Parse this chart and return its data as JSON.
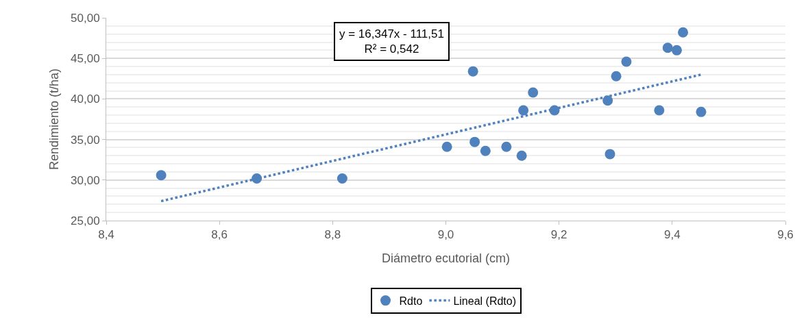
{
  "chart_data": {
    "type": "scatter",
    "xlabel": "Diámetro ecutorial (cm)",
    "ylabel": "Rendimiento (t/ha)",
    "annotations": [
      "y = 16,347x - 111,51\nR² = 0,542"
    ],
    "xlim": [
      8.4,
      9.6
    ],
    "xticks": [
      {
        "value": 8.4,
        "label": "8,4"
      },
      {
        "value": 8.6,
        "label": "8,6"
      },
      {
        "value": 8.8,
        "label": "8,8"
      },
      {
        "value": 9.0,
        "label": "9,0"
      },
      {
        "value": 9.2,
        "label": "9,2"
      },
      {
        "value": 9.4,
        "label": "9,4"
      },
      {
        "value": 9.6,
        "label": "9,6"
      }
    ],
    "ylim": [
      25,
      50
    ],
    "yticks": [
      {
        "value": 25,
        "label": "25,00"
      },
      {
        "value": 30,
        "label": "30,00"
      },
      {
        "value": 35,
        "label": "35,00"
      },
      {
        "value": 40,
        "label": "40,00"
      },
      {
        "value": 45,
        "label": "45,00"
      },
      {
        "value": 50,
        "label": "50,00"
      }
    ],
    "grid": "y",
    "legend": "bottom",
    "marker": "circle",
    "series": [
      {
        "name": "Rdto",
        "color": "#4f81bd",
        "x": [
          8.497,
          8.666,
          8.817,
          9.002,
          9.048,
          9.051,
          9.07,
          9.107,
          9.134,
          9.137,
          9.154,
          9.192,
          9.286,
          9.29,
          9.301,
          9.319,
          9.377,
          9.392,
          9.408,
          9.419,
          9.451
        ],
        "values": [
          30.6,
          30.2,
          30.2,
          34.1,
          43.4,
          34.7,
          33.6,
          34.1,
          33.0,
          38.6,
          40.8,
          38.6,
          39.8,
          33.2,
          42.8,
          44.6,
          38.6,
          46.3,
          46.0,
          48.2,
          38.4
        ]
      },
      {
        "name": "Lineal (Rdto)",
        "type": "line",
        "color": "#4f81bd",
        "line_style": "dotted",
        "marker": "none",
        "x": [
          8.497,
          9.451
        ],
        "values": [
          27.4,
          43.0
        ]
      }
    ]
  }
}
